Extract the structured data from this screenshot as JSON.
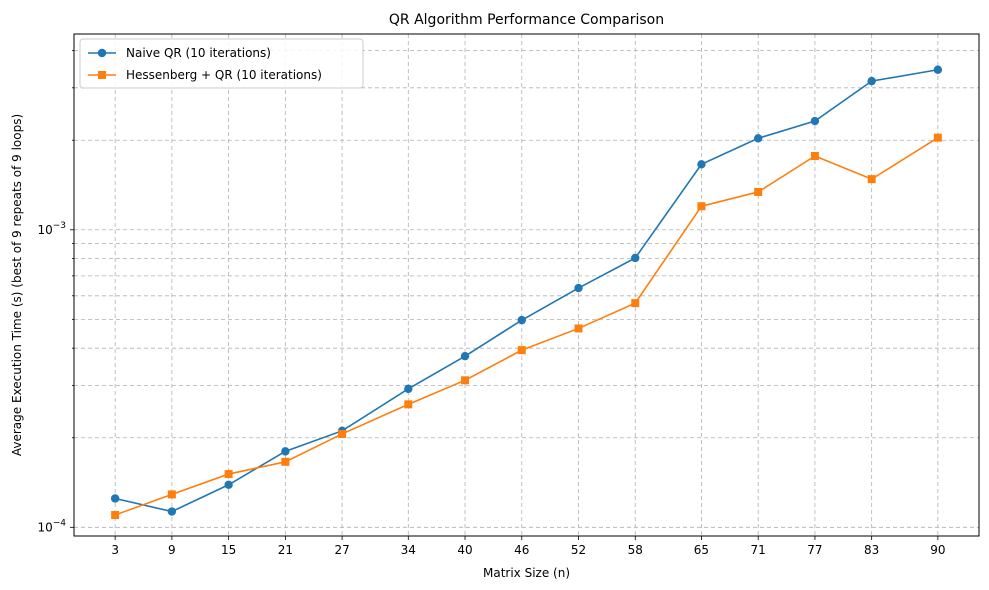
{
  "chart_data": {
    "type": "line",
    "title": "QR Algorithm Performance Comparison",
    "xlabel": "Matrix Size (n)",
    "ylabel": "Average Execution Time (s) (best of 9 repeats of 9 loops)",
    "yscale": "log",
    "ylim": [
      9.35e-05,
      0.00455
    ],
    "x": [
      3,
      9,
      15,
      21,
      27,
      34,
      40,
      46,
      52,
      58,
      65,
      71,
      77,
      83,
      90
    ],
    "x_tick_labels": [
      "3",
      "9",
      "15",
      "21",
      "27",
      "34",
      "40",
      "46",
      "52",
      "58",
      "65",
      "71",
      "77",
      "83",
      "90"
    ],
    "y_major_ticks": [
      {
        "value": 0.0001,
        "base": "10",
        "exp": "−4"
      },
      {
        "value": 0.001,
        "base": "10",
        "exp": "−3"
      }
    ],
    "grid": true,
    "legend_location": "upper left",
    "series": [
      {
        "name": "Naive QR (10 iterations)",
        "color": "#1f77b4",
        "marker": "circle",
        "values": [
          0.000125,
          0.000113,
          0.000139,
          0.00018,
          0.000211,
          0.000292,
          0.000376,
          0.000497,
          0.000637,
          0.000804,
          0.00166,
          0.00203,
          0.00232,
          0.00316,
          0.00345
        ]
      },
      {
        "name": "Hessenberg + QR (10 iterations)",
        "color": "#ff7f0e",
        "marker": "square",
        "values": [
          0.00011,
          0.000129,
          0.000151,
          0.000166,
          0.000206,
          0.000259,
          0.000312,
          0.000394,
          0.000466,
          0.000567,
          0.0012,
          0.00134,
          0.00177,
          0.00148,
          0.00204
        ]
      }
    ]
  }
}
